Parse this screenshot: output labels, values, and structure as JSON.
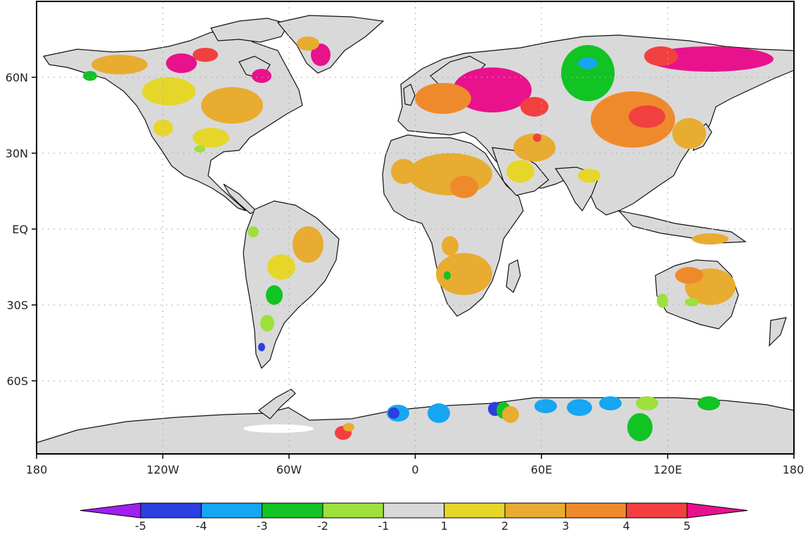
{
  "map": {
    "lon_ticks": [
      "180",
      "120W",
      "60W",
      "0",
      "60E",
      "120E",
      "180"
    ],
    "lat_ticks": [
      "60N",
      "30N",
      "EQ",
      "30S",
      "60S"
    ],
    "gridlines": true,
    "land_fill_color": "#d9d9d9",
    "ocean_color": "#ffffff",
    "frame_color": "#000000"
  },
  "colorbar": {
    "labels": [
      "-5",
      "-4",
      "-3",
      "-2",
      "-1",
      "1",
      "2",
      "3",
      "4",
      "5"
    ],
    "colors": [
      "#a020f0",
      "#2c3fe0",
      "#16a6f2",
      "#12c324",
      "#9ee03c",
      "#d9d9d9",
      "#e6d62a",
      "#e8ac30",
      "#ef8a2c",
      "#f24040",
      "#e8128c"
    ],
    "extend": "both"
  }
}
